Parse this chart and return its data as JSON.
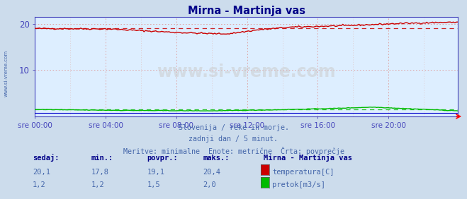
{
  "title": "Mirna - Martinja vas",
  "bg_color": "#ccdcec",
  "plot_bg_color": "#ddeeff",
  "title_color": "#000088",
  "axis_color": "#4444bb",
  "grid_color": "#ddaaaa",
  "tick_color": "#4444bb",
  "text_below_color": "#4466aa",
  "temp_avg": 19.1,
  "temp_min": 17.8,
  "temp_max": 20.4,
  "temp_current": 20.1,
  "flow_avg": 1.5,
  "flow_min": 1.2,
  "flow_max": 2.0,
  "flow_current": 1.2,
  "ylim": [
    0,
    21.5
  ],
  "yticks": [
    10,
    20
  ],
  "temp_color": "#cc0000",
  "flow_color": "#00bb00",
  "height_color": "#0000cc",
  "watermark": "www.si-vreme.com",
  "sidebar_text": "www.si-vreme.com",
  "sidebar_color": "#4466aa",
  "table_header_color": "#000088",
  "table_value_color": "#4466aa",
  "n_points": 288,
  "x_tick_labels": [
    "sre 00:00",
    "sre 04:00",
    "sre 08:00",
    "sre 12:00",
    "sre 16:00",
    "sre 20:00"
  ],
  "x_tick_positions": [
    0,
    48,
    96,
    144,
    192,
    240
  ],
  "legend_title": "Mirna - Martinja vas",
  "legend_items": [
    "temperatura[C]",
    "pretok[m3/s]"
  ],
  "legend_colors": [
    "#cc0000",
    "#00bb00"
  ],
  "table_headers": [
    "sedaj:",
    "min.:",
    "povpr.:",
    "maks.:"
  ],
  "table_data": [
    [
      20.1,
      17.8,
      19.1,
      20.4
    ],
    [
      1.2,
      1.2,
      1.5,
      2.0
    ]
  ],
  "text_below": [
    "Slovenija / reke in morje.",
    "zadnji dan / 5 minut.",
    "Meritve: minimalne  Enote: metrične  Črta: povprečje"
  ]
}
